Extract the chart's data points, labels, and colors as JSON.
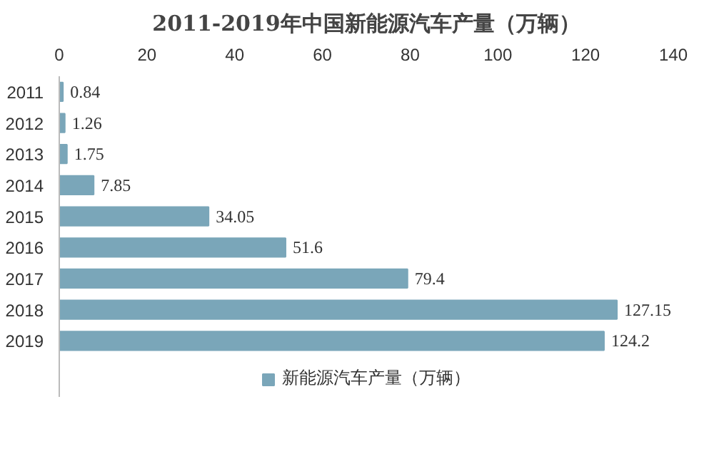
{
  "chart_data": {
    "type": "bar",
    "orientation": "horizontal",
    "title": "2011-2019年中国新能源汽车产量（万辆）",
    "categories": [
      "2011",
      "2012",
      "2013",
      "2014",
      "2015",
      "2016",
      "2017",
      "2018",
      "2019"
    ],
    "series": [
      {
        "name": "新能源汽车产量（万辆）",
        "color": "#7aa6b9",
        "values": [
          0.84,
          1.26,
          1.75,
          7.85,
          34.05,
          51.6,
          79.4,
          127.15,
          124.2
        ]
      }
    ],
    "xlim": [
      0,
      140
    ],
    "xticks": [
      0,
      20,
      40,
      60,
      80,
      100,
      120,
      140
    ],
    "data_labels": true,
    "grid": false,
    "legend": "bottom"
  }
}
